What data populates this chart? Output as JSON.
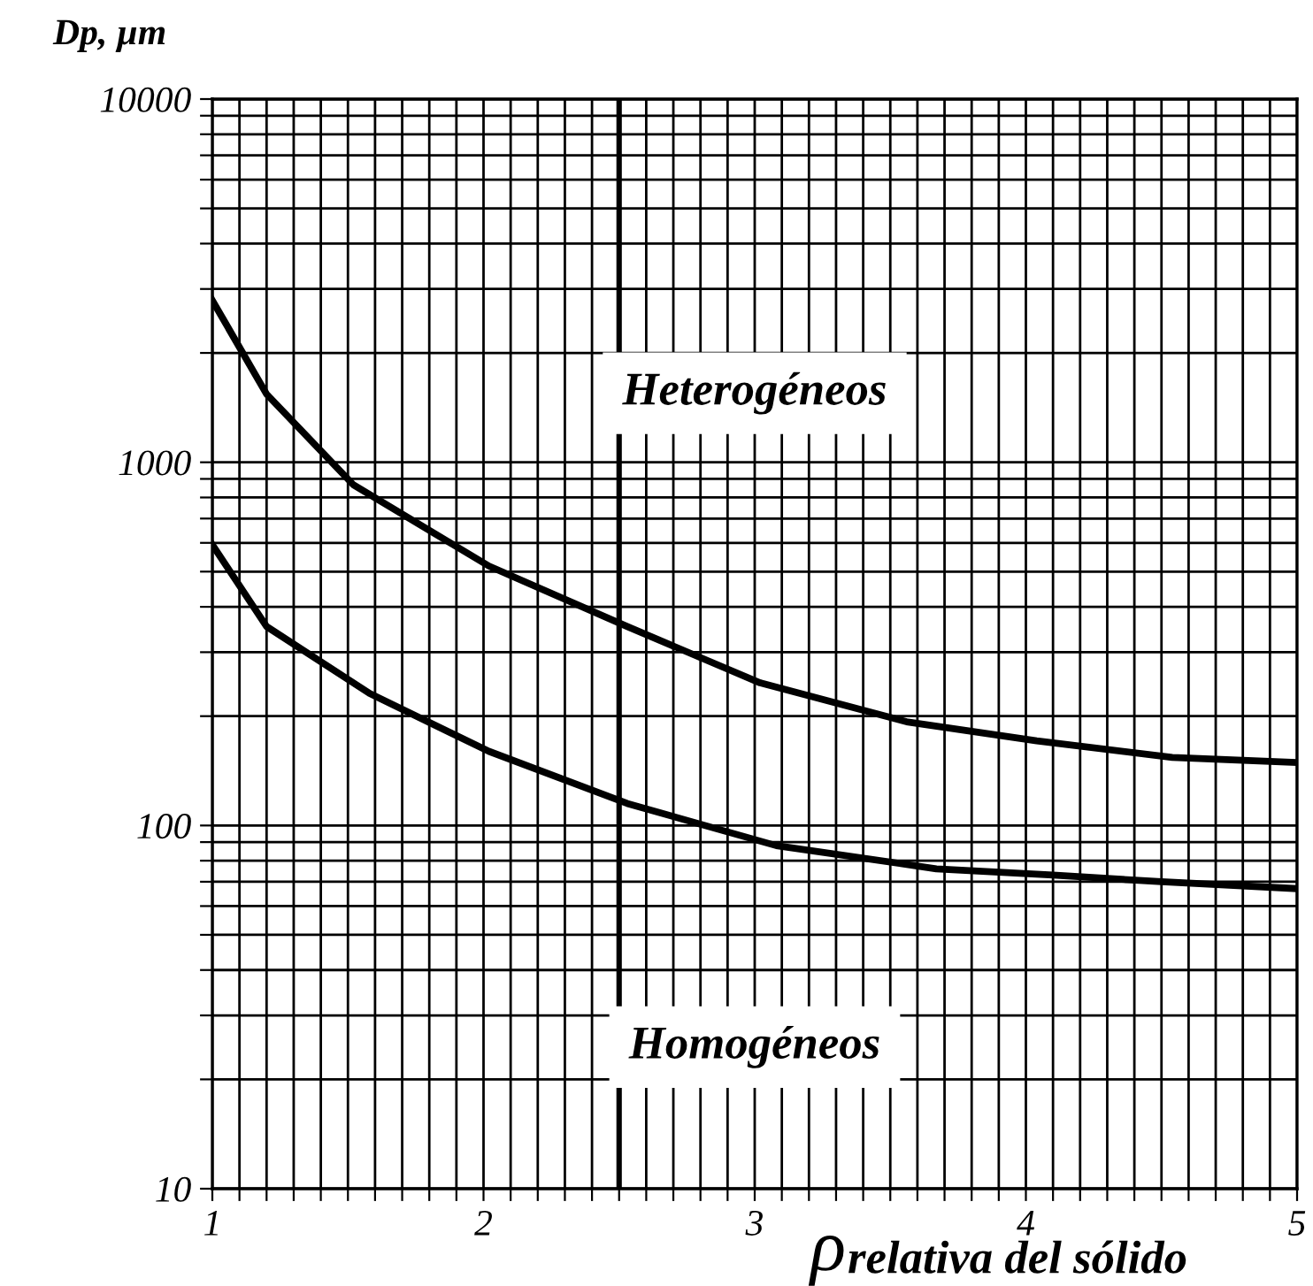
{
  "chart_data": {
    "type": "line",
    "ylabel": "Dp, µm",
    "xlabel": "ρ$_{relativa del sólido}$",
    "annotations": [
      "Heterogéneos",
      "Homogéneos"
    ],
    "log": "y",
    "xlim": [
      1,
      5
    ],
    "ylim": [
      10,
      10000
    ],
    "xticks": [
      1,
      {
        "value": 1.1,
        "label": null
      },
      {
        "value": 1.2,
        "label": null
      },
      {
        "value": 1.3,
        "label": null
      },
      {
        "value": 1.4,
        "label": null
      },
      {
        "value": 1.5,
        "label": null
      },
      {
        "value": 1.6,
        "label": null
      },
      {
        "value": 1.7,
        "label": null
      },
      {
        "value": 1.8,
        "label": null
      },
      {
        "value": 1.9,
        "label": null
      },
      2,
      {
        "value": 2.1,
        "label": null
      },
      {
        "value": 2.2,
        "label": null
      },
      {
        "value": 2.3,
        "label": null
      },
      {
        "value": 2.4,
        "label": null
      },
      {
        "value": 2.5,
        "label": null
      },
      {
        "value": 2.6,
        "label": null
      },
      {
        "value": 2.7,
        "label": null
      },
      {
        "value": 2.8,
        "label": null
      },
      {
        "value": 2.9,
        "label": null
      },
      3,
      {
        "value": 3.1,
        "label": null
      },
      {
        "value": 3.2,
        "label": null
      },
      {
        "value": 3.3,
        "label": null
      },
      {
        "value": 3.4,
        "label": null
      },
      {
        "value": 3.5,
        "label": null
      },
      {
        "value": 3.6,
        "label": null
      },
      {
        "value": 3.7,
        "label": null
      },
      {
        "value": 3.8,
        "label": null
      },
      {
        "value": 3.9,
        "label": null
      },
      4,
      {
        "value": 4.1,
        "label": null
      },
      {
        "value": 4.2,
        "label": null
      },
      {
        "value": 4.3,
        "label": null
      },
      {
        "value": 4.4,
        "label": null
      },
      {
        "value": 4.5,
        "label": null
      },
      {
        "value": 4.6,
        "label": null
      },
      {
        "value": 4.7,
        "label": null
      },
      {
        "value": 4.8,
        "label": null
      },
      {
        "value": 4.9,
        "label": null
      },
      5
    ],
    "yticks": [
      10,
      {
        "value": 20,
        "label": null
      },
      {
        "value": 30,
        "label": null
      },
      {
        "value": 40,
        "label": null
      },
      {
        "value": 50,
        "label": null
      },
      {
        "value": 60,
        "label": null
      },
      {
        "value": 70,
        "label": null
      },
      {
        "value": 80,
        "label": null
      },
      {
        "value": 90,
        "label": null
      },
      100,
      {
        "value": 200,
        "label": null
      },
      {
        "value": 300,
        "label": null
      },
      {
        "value": 400,
        "label": null
      },
      {
        "value": 500,
        "label": null
      },
      {
        "value": 600,
        "label": null
      },
      {
        "value": 700,
        "label": null
      },
      {
        "value": 800,
        "label": null
      },
      {
        "value": 900,
        "label": null
      },
      1000,
      {
        "value": 2000,
        "label": null
      },
      {
        "value": 3000,
        "label": null
      },
      {
        "value": 4000,
        "label": null
      },
      {
        "value": 5000,
        "label": null
      },
      {
        "value": 6000,
        "label": null
      },
      {
        "value": 7000,
        "label": null
      },
      {
        "value": 8000,
        "label": null
      },
      {
        "value": 9000,
        "label": null
      },
      10000
    ],
    "grid": true,
    "ref_lines": [
      {
        "axis": "x",
        "value": 2.5,
        "color": "#000000"
      }
    ],
    "series": [
      {
        "color": "#000000",
        "x": [
          1,
          1.2,
          1.52,
          2.02,
          2.53,
          3.02,
          3.56,
          4.04,
          4.54,
          5
        ],
        "values": [
          2790,
          1540,
          867,
          518,
          353,
          247,
          193,
          171,
          154,
          149
        ]
      },
      {
        "color": "#000000",
        "x": [
          1,
          1.2,
          1.58,
          2.02,
          2.53,
          3.08,
          3.67,
          4.1,
          4.5,
          5
        ],
        "values": [
          593,
          353,
          231,
          160,
          115,
          88,
          76,
          73,
          70,
          67
        ]
      }
    ]
  }
}
